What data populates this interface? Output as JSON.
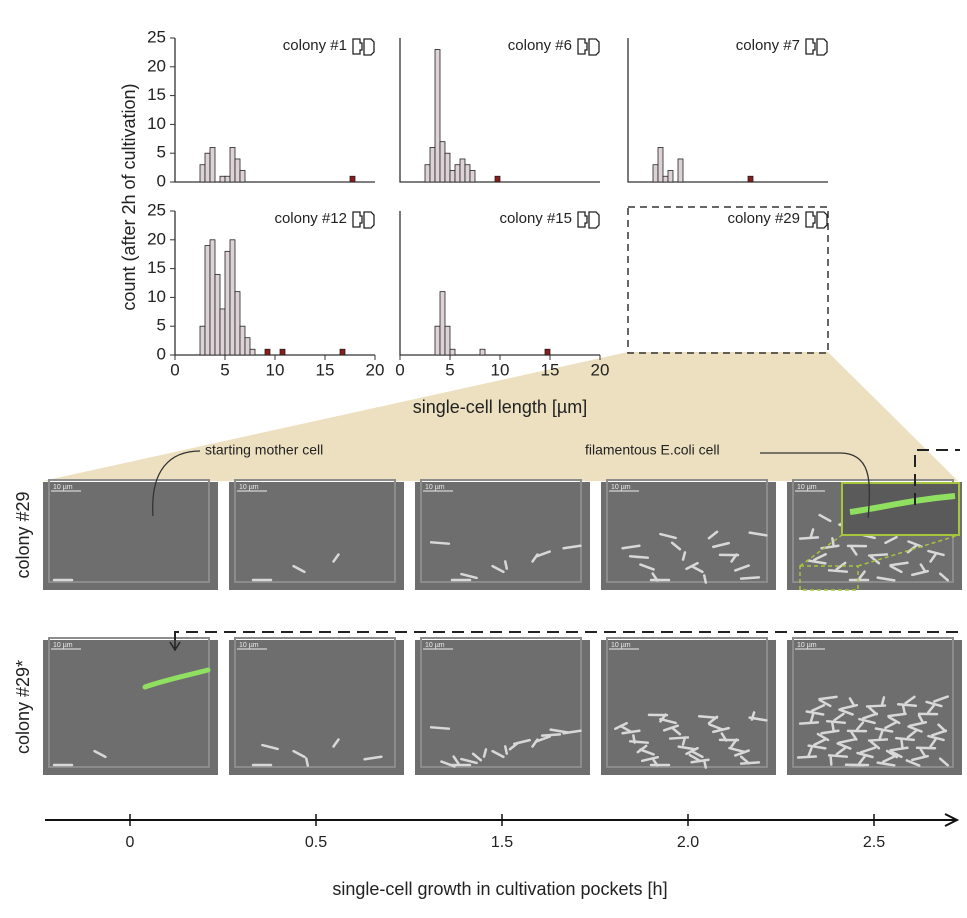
{
  "chart_data": [
    {
      "type": "bar",
      "title": "colony #1",
      "xlim": [
        0,
        20
      ],
      "ylim": [
        0,
        25
      ],
      "yticks": [
        0,
        5,
        10,
        15,
        20,
        25
      ],
      "x": [
        2.75,
        3.25,
        3.75,
        4.75,
        5.25,
        5.75,
        6.25,
        6.75,
        17.75
      ],
      "values": [
        3,
        5,
        6,
        1,
        1,
        6,
        4,
        2,
        1
      ],
      "colors": [
        "#ddd3d6",
        "#ddd3d6",
        "#ddd3d6",
        "#ddd3d6",
        "#ddd3d6",
        "#ddd3d6",
        "#ddd3d6",
        "#ddd3d6",
        "#8b1a1a"
      ]
    },
    {
      "type": "bar",
      "title": "colony #6",
      "xlim": [
        0,
        20
      ],
      "ylim": [
        0,
        25
      ],
      "x": [
        2.75,
        3.25,
        3.75,
        4.25,
        4.75,
        5.25,
        5.75,
        6.25,
        6.75,
        7.25,
        9.75
      ],
      "values": [
        3,
        6,
        23,
        7,
        5,
        2,
        3,
        4,
        3,
        2,
        1
      ],
      "colors": [
        "#ddd3d6",
        "#ddd3d6",
        "#ddd3d6",
        "#ddd3d6",
        "#ddd3d6",
        "#ddd3d6",
        "#ddd3d6",
        "#ddd3d6",
        "#ddd3d6",
        "#ddd3d6",
        "#8b1a1a"
      ]
    },
    {
      "type": "bar",
      "title": "colony #7",
      "xlim": [
        0,
        20
      ],
      "ylim": [
        0,
        25
      ],
      "x": [
        2.75,
        3.25,
        3.75,
        4.25,
        5.25,
        12.25
      ],
      "values": [
        3,
        6,
        1,
        2,
        4,
        1
      ],
      "colors": [
        "#ddd3d6",
        "#ddd3d6",
        "#ddd3d6",
        "#ddd3d6",
        "#ddd3d6",
        "#8b1a1a"
      ]
    },
    {
      "type": "bar",
      "title": "colony #12",
      "xlim": [
        0,
        20
      ],
      "ylim": [
        0,
        25
      ],
      "yticks": [
        0,
        5,
        10,
        15,
        20,
        25
      ],
      "xticks": [
        0,
        5,
        10,
        15,
        20
      ],
      "x": [
        2.75,
        3.25,
        3.75,
        4.25,
        4.75,
        5.25,
        5.75,
        6.25,
        6.75,
        7.25,
        7.75,
        9.25,
        10.75,
        16.75
      ],
      "values": [
        5,
        19,
        20,
        14,
        8,
        18,
        20,
        11,
        5,
        3,
        1,
        1,
        1,
        1
      ],
      "colors": [
        "#ddd3d6",
        "#ddd3d6",
        "#ddd3d6",
        "#ddd3d6",
        "#ddd3d6",
        "#ddd3d6",
        "#ddd3d6",
        "#ddd3d6",
        "#ddd3d6",
        "#ddd3d6",
        "#ddd3d6",
        "#8b1a1a",
        "#8b1a1a",
        "#8b1a1a"
      ]
    },
    {
      "type": "bar",
      "title": "colony #15",
      "xlim": [
        0,
        20
      ],
      "ylim": [
        0,
        25
      ],
      "xticks": [
        0,
        5,
        10,
        15,
        20
      ],
      "x": [
        3.75,
        4.25,
        4.75,
        5.25,
        8.25,
        14.75
      ],
      "values": [
        5,
        11,
        5,
        1,
        1,
        1
      ],
      "colors": [
        "#ddd3d6",
        "#ddd3d6",
        "#ddd3d6",
        "#ddd3d6",
        "#ddd3d6",
        "#8b1a1a"
      ]
    },
    {
      "type": "bar",
      "title": "colony #29",
      "frame": "dashed"
    }
  ],
  "y_label": "count (after 2h of cultivation)",
  "x_label": "single-cell length [µm]",
  "images": {
    "rows": [
      "colony #29",
      "colony #29*"
    ],
    "scale_bar": "10 µm",
    "annotations": [
      "starting mother cell",
      "filamentous E.coli cell"
    ]
  },
  "timeline": {
    "categories": [
      "0",
      "0.5",
      "1.5",
      "2.0",
      "2.5"
    ],
    "label": "single-cell growth in cultivation pockets [h]"
  }
}
